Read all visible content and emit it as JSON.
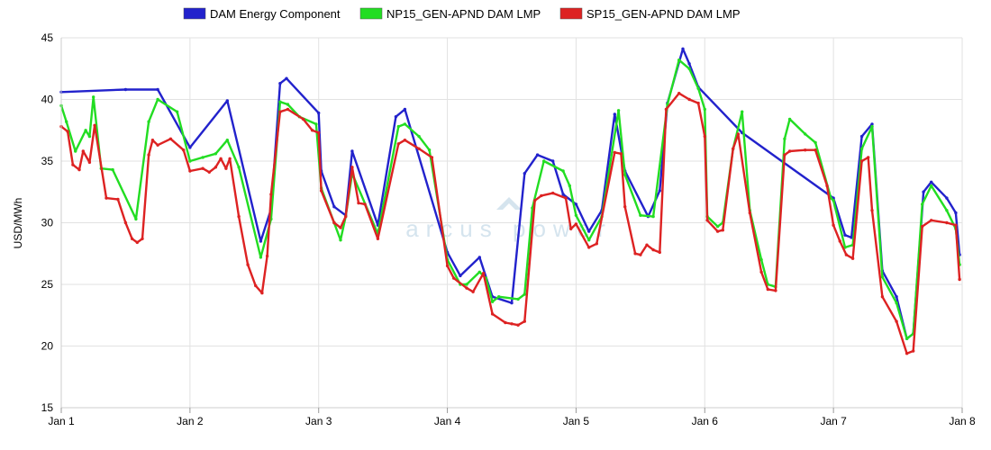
{
  "chart_data": {
    "type": "line",
    "ylabel": "USD/MWh",
    "ylim": [
      15,
      45
    ],
    "yticks": [
      15,
      20,
      25,
      30,
      35,
      40,
      45
    ],
    "xlim": [
      0,
      7
    ],
    "xticks": [
      {
        "x": 0,
        "label": "Jan 1"
      },
      {
        "x": 1,
        "label": "Jan 2"
      },
      {
        "x": 2,
        "label": "Jan 3"
      },
      {
        "x": 3,
        "label": "Jan 4"
      },
      {
        "x": 4,
        "label": "Jan 5"
      },
      {
        "x": 5,
        "label": "Jan 6"
      },
      {
        "x": 6,
        "label": "Jan 7"
      },
      {
        "x": 7,
        "label": "Jan 8"
      }
    ],
    "grid": true,
    "legend_position": "top-center",
    "watermark": "arcus power",
    "series": [
      {
        "name": "DAM Energy Component",
        "color": "#2222cc",
        "values": [
          [
            0,
            40.6
          ],
          [
            0.5,
            40.8
          ],
          [
            0.75,
            40.8
          ],
          [
            1,
            36.1
          ],
          [
            1.29,
            39.9
          ],
          [
            1.55,
            28.5
          ],
          [
            1.63,
            31.1
          ],
          [
            1.7,
            41.3
          ],
          [
            1.75,
            41.7
          ],
          [
            2,
            38.9
          ],
          [
            2.02,
            34.2
          ],
          [
            2.12,
            31.3
          ],
          [
            2.21,
            30.6
          ],
          [
            2.26,
            35.8
          ],
          [
            2.46,
            29.8
          ],
          [
            2.6,
            38.6
          ],
          [
            2.67,
            39.2
          ],
          [
            3,
            27.6
          ],
          [
            3.1,
            25.7
          ],
          [
            3.25,
            27.2
          ],
          [
            3.35,
            24.0
          ],
          [
            3.5,
            23.5
          ],
          [
            3.6,
            34.0
          ],
          [
            3.7,
            35.5
          ],
          [
            3.82,
            35.0
          ],
          [
            3.9,
            32.3
          ],
          [
            4,
            31.5
          ],
          [
            4.1,
            29.3
          ],
          [
            4.2,
            31.0
          ],
          [
            4.3,
            38.8
          ],
          [
            4.38,
            34.2
          ],
          [
            4.56,
            30.5
          ],
          [
            4.65,
            32.6
          ],
          [
            4.71,
            39.7
          ],
          [
            4.83,
            44.1
          ],
          [
            4.88,
            42.9
          ],
          [
            4.95,
            41.0
          ],
          [
            5.29,
            37.3
          ],
          [
            6.0,
            32.0
          ],
          [
            6.09,
            29.0
          ],
          [
            6.14,
            28.8
          ],
          [
            6.22,
            37.0
          ],
          [
            6.3,
            38.0
          ],
          [
            6.38,
            26.1
          ],
          [
            6.49,
            24.0
          ],
          [
            6.57,
            20.6
          ],
          [
            6.62,
            21.0
          ],
          [
            6.7,
            32.5
          ],
          [
            6.76,
            33.3
          ],
          [
            6.88,
            32.0
          ],
          [
            6.95,
            30.8
          ],
          [
            6.98,
            27.4
          ]
        ]
      },
      {
        "name": "NP15_GEN-APND DAM LMP",
        "color": "#22dd22",
        "values": [
          [
            0,
            39.5
          ],
          [
            0.04,
            38.2
          ],
          [
            0.11,
            35.8
          ],
          [
            0.19,
            37.5
          ],
          [
            0.22,
            37.0
          ],
          [
            0.25,
            40.2
          ],
          [
            0.31,
            34.4
          ],
          [
            0.4,
            34.3
          ],
          [
            0.58,
            30.3
          ],
          [
            0.68,
            38.2
          ],
          [
            0.75,
            40.0
          ],
          [
            0.9,
            39.0
          ],
          [
            1,
            35.0
          ],
          [
            1.1,
            35.3
          ],
          [
            1.2,
            35.6
          ],
          [
            1.29,
            36.7
          ],
          [
            1.38,
            34.5
          ],
          [
            1.55,
            27.2
          ],
          [
            1.63,
            30.3
          ],
          [
            1.7,
            39.8
          ],
          [
            1.76,
            39.6
          ],
          [
            1.85,
            38.6
          ],
          [
            1.98,
            38.0
          ],
          [
            2.02,
            32.8
          ],
          [
            2.12,
            30.0
          ],
          [
            2.17,
            28.6
          ],
          [
            2.21,
            30.5
          ],
          [
            2.26,
            34.0
          ],
          [
            2.46,
            29.1
          ],
          [
            2.62,
            37.8
          ],
          [
            2.67,
            38.0
          ],
          [
            2.78,
            37.0
          ],
          [
            2.86,
            35.9
          ],
          [
            3,
            27.0
          ],
          [
            3.1,
            25.0
          ],
          [
            3.15,
            25.0
          ],
          [
            3.25,
            26.0
          ],
          [
            3.3,
            25.5
          ],
          [
            3.35,
            23.6
          ],
          [
            3.4,
            24.0
          ],
          [
            3.55,
            23.8
          ],
          [
            3.6,
            24.2
          ],
          [
            3.66,
            31.2
          ],
          [
            3.75,
            35.0
          ],
          [
            3.9,
            34.2
          ],
          [
            3.95,
            33.0
          ],
          [
            4,
            30.6
          ],
          [
            4.1,
            28.6
          ],
          [
            4.2,
            30.5
          ],
          [
            4.33,
            39.1
          ],
          [
            4.38,
            33.9
          ],
          [
            4.5,
            30.6
          ],
          [
            4.6,
            30.5
          ],
          [
            4.71,
            39.6
          ],
          [
            4.8,
            43.2
          ],
          [
            4.88,
            42.5
          ],
          [
            4.95,
            40.9
          ],
          [
            5.0,
            39.2
          ],
          [
            5.02,
            30.5
          ],
          [
            5.1,
            29.7
          ],
          [
            5.14,
            30.0
          ],
          [
            5.22,
            36.0
          ],
          [
            5.29,
            39.0
          ],
          [
            5.35,
            31.0
          ],
          [
            5.44,
            27.0
          ],
          [
            5.49,
            25.0
          ],
          [
            5.55,
            24.8
          ],
          [
            5.62,
            36.8
          ],
          [
            5.66,
            38.4
          ],
          [
            5.78,
            37.2
          ],
          [
            5.86,
            36.5
          ],
          [
            5.98,
            32.0
          ],
          [
            6.0,
            31.8
          ],
          [
            6.09,
            28.0
          ],
          [
            6.15,
            28.2
          ],
          [
            6.22,
            36.0
          ],
          [
            6.3,
            37.8
          ],
          [
            6.38,
            25.6
          ],
          [
            6.49,
            23.5
          ],
          [
            6.57,
            20.6
          ],
          [
            6.62,
            21.0
          ],
          [
            6.69,
            31.5
          ],
          [
            6.76,
            33.0
          ],
          [
            6.88,
            31.0
          ],
          [
            6.95,
            29.5
          ],
          [
            6.98,
            26.6
          ]
        ]
      },
      {
        "name": "SP15_GEN-APND DAM LMP",
        "color": "#dd2222",
        "values": [
          [
            0,
            37.8
          ],
          [
            0.05,
            37.4
          ],
          [
            0.09,
            34.7
          ],
          [
            0.14,
            34.3
          ],
          [
            0.17,
            35.8
          ],
          [
            0.22,
            34.9
          ],
          [
            0.26,
            37.9
          ],
          [
            0.35,
            32.0
          ],
          [
            0.44,
            31.9
          ],
          [
            0.5,
            30.0
          ],
          [
            0.55,
            28.7
          ],
          [
            0.59,
            28.4
          ],
          [
            0.63,
            28.7
          ],
          [
            0.68,
            35.5
          ],
          [
            0.71,
            36.7
          ],
          [
            0.75,
            36.3
          ],
          [
            0.85,
            36.8
          ],
          [
            0.95,
            35.9
          ],
          [
            1,
            34.2
          ],
          [
            1.1,
            34.4
          ],
          [
            1.15,
            34.1
          ],
          [
            1.2,
            34.5
          ],
          [
            1.24,
            35.2
          ],
          [
            1.28,
            34.4
          ],
          [
            1.31,
            35.2
          ],
          [
            1.38,
            30.5
          ],
          [
            1.45,
            26.6
          ],
          [
            1.51,
            24.9
          ],
          [
            1.56,
            24.3
          ],
          [
            1.6,
            27.3
          ],
          [
            1.63,
            32.3
          ],
          [
            1.7,
            39.0
          ],
          [
            1.76,
            39.2
          ],
          [
            1.88,
            38.4
          ],
          [
            1.95,
            37.5
          ],
          [
            2,
            37.3
          ],
          [
            2.02,
            32.6
          ],
          [
            2.12,
            30.0
          ],
          [
            2.17,
            29.6
          ],
          [
            2.21,
            30.5
          ],
          [
            2.26,
            34.5
          ],
          [
            2.31,
            31.6
          ],
          [
            2.36,
            31.5
          ],
          [
            2.46,
            28.7
          ],
          [
            2.62,
            36.4
          ],
          [
            2.67,
            36.7
          ],
          [
            2.78,
            36.0
          ],
          [
            2.88,
            35.3
          ],
          [
            3,
            26.5
          ],
          [
            3.05,
            25.5
          ],
          [
            3.15,
            24.7
          ],
          [
            3.2,
            24.4
          ],
          [
            3.28,
            25.9
          ],
          [
            3.35,
            22.6
          ],
          [
            3.45,
            21.9
          ],
          [
            3.5,
            21.8
          ],
          [
            3.55,
            21.7
          ],
          [
            3.6,
            22.0
          ],
          [
            3.68,
            31.8
          ],
          [
            3.73,
            32.2
          ],
          [
            3.82,
            32.4
          ],
          [
            3.92,
            32.0
          ],
          [
            3.96,
            29.5
          ],
          [
            4,
            29.9
          ],
          [
            4.1,
            28.0
          ],
          [
            4.16,
            28.3
          ],
          [
            4.3,
            35.7
          ],
          [
            4.35,
            35.6
          ],
          [
            4.38,
            31.3
          ],
          [
            4.46,
            27.5
          ],
          [
            4.5,
            27.4
          ],
          [
            4.55,
            28.2
          ],
          [
            4.6,
            27.8
          ],
          [
            4.65,
            27.6
          ],
          [
            4.7,
            39.2
          ],
          [
            4.8,
            40.5
          ],
          [
            4.88,
            40.0
          ],
          [
            4.95,
            39.7
          ],
          [
            5.0,
            37.0
          ],
          [
            5.02,
            30.2
          ],
          [
            5.1,
            29.3
          ],
          [
            5.14,
            29.4
          ],
          [
            5.22,
            36.0
          ],
          [
            5.26,
            37.2
          ],
          [
            5.35,
            30.8
          ],
          [
            5.44,
            26.0
          ],
          [
            5.49,
            24.6
          ],
          [
            5.55,
            24.5
          ],
          [
            5.62,
            35.5
          ],
          [
            5.66,
            35.8
          ],
          [
            5.78,
            35.9
          ],
          [
            5.86,
            35.9
          ],
          [
            5.95,
            33.0
          ],
          [
            6.0,
            29.8
          ],
          [
            6.05,
            28.5
          ],
          [
            6.1,
            27.4
          ],
          [
            6.15,
            27.1
          ],
          [
            6.22,
            35.0
          ],
          [
            6.27,
            35.3
          ],
          [
            6.3,
            31.0
          ],
          [
            6.38,
            24.0
          ],
          [
            6.49,
            22.0
          ],
          [
            6.57,
            19.4
          ],
          [
            6.62,
            19.6
          ],
          [
            6.69,
            29.7
          ],
          [
            6.76,
            30.2
          ],
          [
            6.88,
            30.0
          ],
          [
            6.95,
            29.8
          ],
          [
            6.98,
            25.4
          ]
        ]
      }
    ]
  }
}
